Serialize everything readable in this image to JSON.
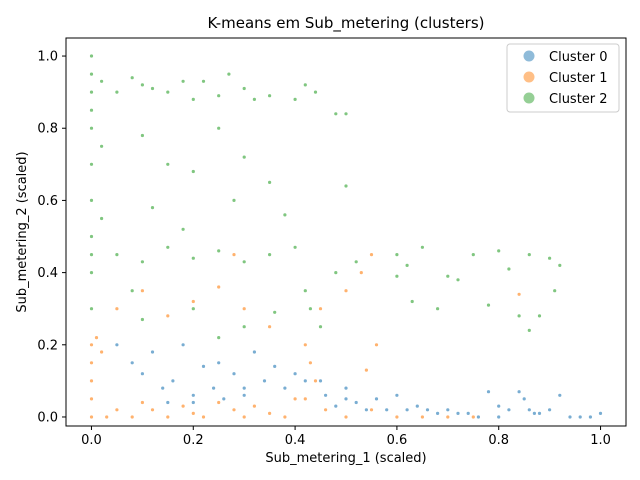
{
  "chart_data": {
    "type": "scatter",
    "title": "K-means em Sub_metering (clusters)",
    "xlabel": "Sub_metering_1 (scaled)",
    "ylabel": "Sub_metering_2 (scaled)",
    "xlim": [
      -0.05,
      1.05
    ],
    "ylim": [
      -0.025,
      1.05
    ],
    "xticks": [
      0.0,
      0.2,
      0.4,
      0.6,
      0.8,
      1.0
    ],
    "yticks": [
      0.0,
      0.2,
      0.4,
      0.6,
      0.8,
      1.0
    ],
    "xtick_labels": [
      "0.0",
      "0.2",
      "0.4",
      "0.6",
      "0.8",
      "1.0"
    ],
    "ytick_labels": [
      "0.0",
      "0.2",
      "0.4",
      "0.6",
      "0.8",
      "1.0"
    ],
    "grid": false,
    "legend_position": "top-right",
    "series": [
      {
        "name": "Cluster 0",
        "color": "#1f77b4",
        "points": [
          [
            0.05,
            0.2
          ],
          [
            0.08,
            0.15
          ],
          [
            0.1,
            0.12
          ],
          [
            0.12,
            0.18
          ],
          [
            0.14,
            0.08
          ],
          [
            0.16,
            0.1
          ],
          [
            0.18,
            0.2
          ],
          [
            0.2,
            0.06
          ],
          [
            0.22,
            0.14
          ],
          [
            0.24,
            0.08
          ],
          [
            0.25,
            0.15
          ],
          [
            0.28,
            0.12
          ],
          [
            0.3,
            0.06
          ],
          [
            0.32,
            0.18
          ],
          [
            0.34,
            0.1
          ],
          [
            0.36,
            0.14
          ],
          [
            0.38,
            0.08
          ],
          [
            0.4,
            0.12
          ],
          [
            0.46,
            0.06
          ],
          [
            0.48,
            0.03
          ],
          [
            0.5,
            0.08
          ],
          [
            0.52,
            0.04
          ],
          [
            0.54,
            0.02
          ],
          [
            0.56,
            0.05
          ],
          [
            0.58,
            0.02
          ],
          [
            0.6,
            0.06
          ],
          [
            0.62,
            0.02
          ],
          [
            0.64,
            0.03
          ],
          [
            0.66,
            0.02
          ],
          [
            0.68,
            0.01
          ],
          [
            0.7,
            0.02
          ],
          [
            0.72,
            0.01
          ],
          [
            0.74,
            0.01
          ],
          [
            0.76,
            0.0
          ],
          [
            0.78,
            0.07
          ],
          [
            0.8,
            0.03
          ],
          [
            0.82,
            0.02
          ],
          [
            0.84,
            0.07
          ],
          [
            0.85,
            0.05
          ],
          [
            0.86,
            0.02
          ],
          [
            0.88,
            0.01
          ],
          [
            0.9,
            0.02
          ],
          [
            0.92,
            0.06
          ],
          [
            0.94,
            0.0
          ],
          [
            0.96,
            0.0
          ],
          [
            0.98,
            0.0
          ],
          [
            1.0,
            0.01
          ],
          [
            0.3,
            0.08
          ],
          [
            0.26,
            0.05
          ],
          [
            0.15,
            0.04
          ],
          [
            0.2,
            0.04
          ],
          [
            0.42,
            0.1
          ],
          [
            0.45,
            0.1
          ],
          [
            0.5,
            0.05
          ],
          [
            0.8,
            0.0
          ],
          [
            0.87,
            0.01
          ]
        ]
      },
      {
        "name": "Cluster 1",
        "color": "#ff7f0e",
        "points": [
          [
            0.0,
            0.0
          ],
          [
            0.0,
            0.05
          ],
          [
            0.0,
            0.1
          ],
          [
            0.0,
            0.15
          ],
          [
            0.0,
            0.2
          ],
          [
            0.01,
            0.22
          ],
          [
            0.02,
            0.18
          ],
          [
            0.03,
            0.0
          ],
          [
            0.05,
            0.02
          ],
          [
            0.08,
            0.0
          ],
          [
            0.1,
            0.04
          ],
          [
            0.12,
            0.02
          ],
          [
            0.15,
            0.0
          ],
          [
            0.18,
            0.03
          ],
          [
            0.2,
            0.01
          ],
          [
            0.22,
            0.0
          ],
          [
            0.25,
            0.04
          ],
          [
            0.28,
            0.02
          ],
          [
            0.3,
            0.0
          ],
          [
            0.32,
            0.03
          ],
          [
            0.35,
            0.01
          ],
          [
            0.38,
            0.0
          ],
          [
            0.4,
            0.05
          ],
          [
            0.42,
            0.2
          ],
          [
            0.43,
            0.15
          ],
          [
            0.44,
            0.1
          ],
          [
            0.42,
            0.05
          ],
          [
            0.46,
            0.02
          ],
          [
            0.5,
            0.0
          ],
          [
            0.55,
            0.02
          ],
          [
            0.6,
            0.0
          ],
          [
            0.65,
            0.0
          ],
          [
            0.7,
            0.0
          ],
          [
            0.75,
            0.0
          ],
          [
            0.05,
            0.3
          ],
          [
            0.1,
            0.35
          ],
          [
            0.15,
            0.28
          ],
          [
            0.2,
            0.32
          ],
          [
            0.25,
            0.36
          ],
          [
            0.3,
            0.3
          ],
          [
            0.35,
            0.25
          ],
          [
            0.45,
            0.3
          ],
          [
            0.5,
            0.35
          ],
          [
            0.53,
            0.4
          ],
          [
            0.55,
            0.45
          ],
          [
            0.56,
            0.2
          ],
          [
            0.54,
            0.13
          ],
          [
            0.84,
            0.34
          ],
          [
            0.28,
            0.45
          ]
        ]
      },
      {
        "name": "Cluster 2",
        "color": "#2ca02c",
        "points": [
          [
            0.0,
            1.0
          ],
          [
            0.0,
            0.95
          ],
          [
            0.0,
            0.9
          ],
          [
            0.0,
            0.85
          ],
          [
            0.0,
            0.8
          ],
          [
            0.0,
            0.7
          ],
          [
            0.0,
            0.6
          ],
          [
            0.0,
            0.5
          ],
          [
            0.0,
            0.45
          ],
          [
            0.0,
            0.4
          ],
          [
            0.0,
            0.3
          ],
          [
            0.02,
            0.93
          ],
          [
            0.02,
            0.75
          ],
          [
            0.02,
            0.55
          ],
          [
            0.05,
            0.9
          ],
          [
            0.08,
            0.94
          ],
          [
            0.1,
            0.92
          ],
          [
            0.12,
            0.91
          ],
          [
            0.15,
            0.9
          ],
          [
            0.18,
            0.93
          ],
          [
            0.2,
            0.88
          ],
          [
            0.22,
            0.93
          ],
          [
            0.25,
            0.89
          ],
          [
            0.27,
            0.95
          ],
          [
            0.3,
            0.91
          ],
          [
            0.32,
            0.88
          ],
          [
            0.35,
            0.89
          ],
          [
            0.4,
            0.88
          ],
          [
            0.42,
            0.92
          ],
          [
            0.44,
            0.9
          ],
          [
            0.48,
            0.84
          ],
          [
            0.5,
            0.84
          ],
          [
            0.1,
            0.78
          ],
          [
            0.15,
            0.7
          ],
          [
            0.2,
            0.68
          ],
          [
            0.25,
            0.8
          ],
          [
            0.3,
            0.72
          ],
          [
            0.35,
            0.65
          ],
          [
            0.28,
            0.6
          ],
          [
            0.38,
            0.56
          ],
          [
            0.12,
            0.58
          ],
          [
            0.18,
            0.52
          ],
          [
            0.5,
            0.64
          ],
          [
            0.05,
            0.45
          ],
          [
            0.1,
            0.43
          ],
          [
            0.15,
            0.47
          ],
          [
            0.2,
            0.44
          ],
          [
            0.25,
            0.46
          ],
          [
            0.3,
            0.43
          ],
          [
            0.35,
            0.45
          ],
          [
            0.4,
            0.47
          ],
          [
            0.42,
            0.35
          ],
          [
            0.43,
            0.3
          ],
          [
            0.45,
            0.25
          ],
          [
            0.48,
            0.4
          ],
          [
            0.52,
            0.43
          ],
          [
            0.6,
            0.45
          ],
          [
            0.62,
            0.42
          ],
          [
            0.65,
            0.47
          ],
          [
            0.68,
            0.3
          ],
          [
            0.7,
            0.39
          ],
          [
            0.72,
            0.38
          ],
          [
            0.75,
            0.45
          ],
          [
            0.78,
            0.31
          ],
          [
            0.8,
            0.46
          ],
          [
            0.82,
            0.41
          ],
          [
            0.84,
            0.28
          ],
          [
            0.86,
            0.45
          ],
          [
            0.88,
            0.28
          ],
          [
            0.9,
            0.44
          ],
          [
            0.91,
            0.35
          ],
          [
            0.92,
            0.42
          ],
          [
            0.86,
            0.24
          ],
          [
            0.63,
            0.32
          ],
          [
            0.6,
            0.39
          ],
          [
            0.08,
            0.35
          ],
          [
            0.2,
            0.3
          ],
          [
            0.3,
            0.25
          ],
          [
            0.36,
            0.29
          ],
          [
            0.1,
            0.27
          ],
          [
            0.25,
            0.22
          ]
        ]
      }
    ]
  }
}
